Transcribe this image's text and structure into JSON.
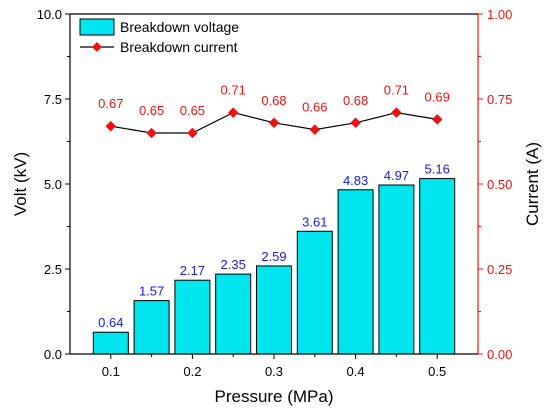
{
  "chart_data": {
    "type": "bar",
    "xlabel": "Pressure (MPa)",
    "ylabel_left": "Volt (kV)",
    "ylabel_right": "Current (A)",
    "xlim": [
      0.05,
      0.55
    ],
    "ylim_left": [
      0,
      10
    ],
    "ylim_right": [
      0,
      1
    ],
    "x_ticks": [
      "0.1",
      "0.2",
      "0.3",
      "0.4",
      "0.5"
    ],
    "y_ticks_left": [
      "0.0",
      "2.5",
      "5.0",
      "7.5",
      "10.0"
    ],
    "y_ticks_right": [
      "0.00",
      "0.25",
      "0.50",
      "0.75",
      "1.00"
    ],
    "grid": false,
    "legend_position": "top-left",
    "series": [
      {
        "name": "Breakdown voltage",
        "type": "bar",
        "axis": "left",
        "x": [
          0.1,
          0.15,
          0.2,
          0.25,
          0.3,
          0.35,
          0.4,
          0.45,
          0.5
        ],
        "values": [
          0.64,
          1.57,
          2.17,
          2.35,
          2.59,
          3.61,
          4.83,
          4.97,
          5.16
        ],
        "labels": [
          "0.64",
          "1.57",
          "2.17",
          "2.35",
          "2.59",
          "3.61",
          "4.83",
          "4.97",
          "5.16"
        ],
        "color": "#00e5ee",
        "label_color": "#1a1adc"
      },
      {
        "name": "Breakdown current",
        "type": "line",
        "axis": "right",
        "x": [
          0.1,
          0.15,
          0.2,
          0.25,
          0.3,
          0.35,
          0.4,
          0.45,
          0.5
        ],
        "values": [
          0.67,
          0.65,
          0.65,
          0.71,
          0.68,
          0.66,
          0.68,
          0.71,
          0.69
        ],
        "labels": [
          "0.67",
          "0.65",
          "0.65",
          "0.71",
          "0.68",
          "0.66",
          "0.68",
          "0.71",
          "0.69"
        ],
        "color": "#000000",
        "marker_color": "#ee1111",
        "label_color": "#ee1111"
      }
    ],
    "colors": {
      "right_axis": "#ee1111",
      "left_axis": "#000000"
    }
  }
}
